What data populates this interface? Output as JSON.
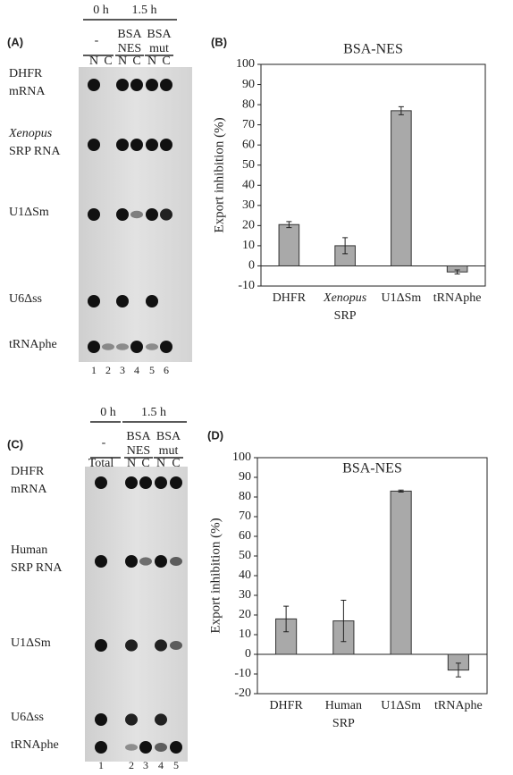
{
  "gels": [
    {
      "panel": "(A)",
      "time_0": "0 h",
      "time_1": "1.5 h",
      "control": "-",
      "groups": [
        [
          "BSA",
          "NES"
        ],
        [
          "BSA",
          "mut"
        ]
      ],
      "lanes": [
        "N",
        "C",
        "N",
        "C",
        "N",
        "C"
      ],
      "lane_numbers": [
        "1",
        "2",
        "3",
        "4",
        "5",
        "6"
      ],
      "rows": [
        [
          "DHFR",
          "mRNA"
        ],
        [
          "Xenopus",
          "SRP RNA"
        ],
        [
          "U1ΔSm"
        ],
        [
          "U6Δss"
        ],
        [
          "tRNAphe"
        ]
      ]
    },
    {
      "panel": "(C)",
      "time_0": "0 h",
      "time_1": "1.5 h",
      "control": "-",
      "groups": [
        [
          "BSA",
          "NES"
        ],
        [
          "BSA",
          "mut"
        ]
      ],
      "lanes": [
        "Total",
        "N",
        "C",
        "N",
        "C"
      ],
      "lane_numbers": [
        "1",
        "2",
        "3",
        "4",
        "5"
      ],
      "rows": [
        [
          "DHFR",
          "mRNA"
        ],
        [
          "Human",
          "SRP RNA"
        ],
        [
          "U1ΔSm"
        ],
        [
          "U6Δss"
        ],
        [
          "tRNAphe"
        ]
      ]
    }
  ],
  "chart_data": [
    {
      "type": "bar",
      "panel": "(B)",
      "title": "BSA-NES",
      "y_label": "Export inhibition (%)",
      "categories": [
        "DHFR",
        "Xenopus SRP",
        "U1ΔSm",
        "tRNAphe"
      ],
      "series": [
        {
          "color": "#a9a9a9",
          "values": [
            20.5,
            10,
            77,
            -3
          ],
          "errors": [
            1.5,
            4,
            2,
            1
          ]
        }
      ],
      "ylim": [
        -10,
        100
      ],
      "yticks": [
        -10,
        0,
        10,
        20,
        30,
        40,
        50,
        60,
        70,
        80,
        90,
        100
      ]
    },
    {
      "type": "bar",
      "panel": "(D)",
      "title": "BSA-NES",
      "y_label": "Export inhibition (%)",
      "categories": [
        "DHFR",
        "Human SRP",
        "U1ΔSm",
        "tRNAphe"
      ],
      "series": [
        {
          "color": "#a9a9a9",
          "values": [
            18,
            17,
            83,
            -8
          ],
          "errors": [
            6.5,
            10.5,
            0.5,
            3.5
          ]
        }
      ],
      "ylim": [
        -20,
        100
      ],
      "yticks": [
        -20,
        -10,
        0,
        10,
        20,
        30,
        40,
        50,
        60,
        70,
        80,
        90,
        100
      ]
    }
  ]
}
